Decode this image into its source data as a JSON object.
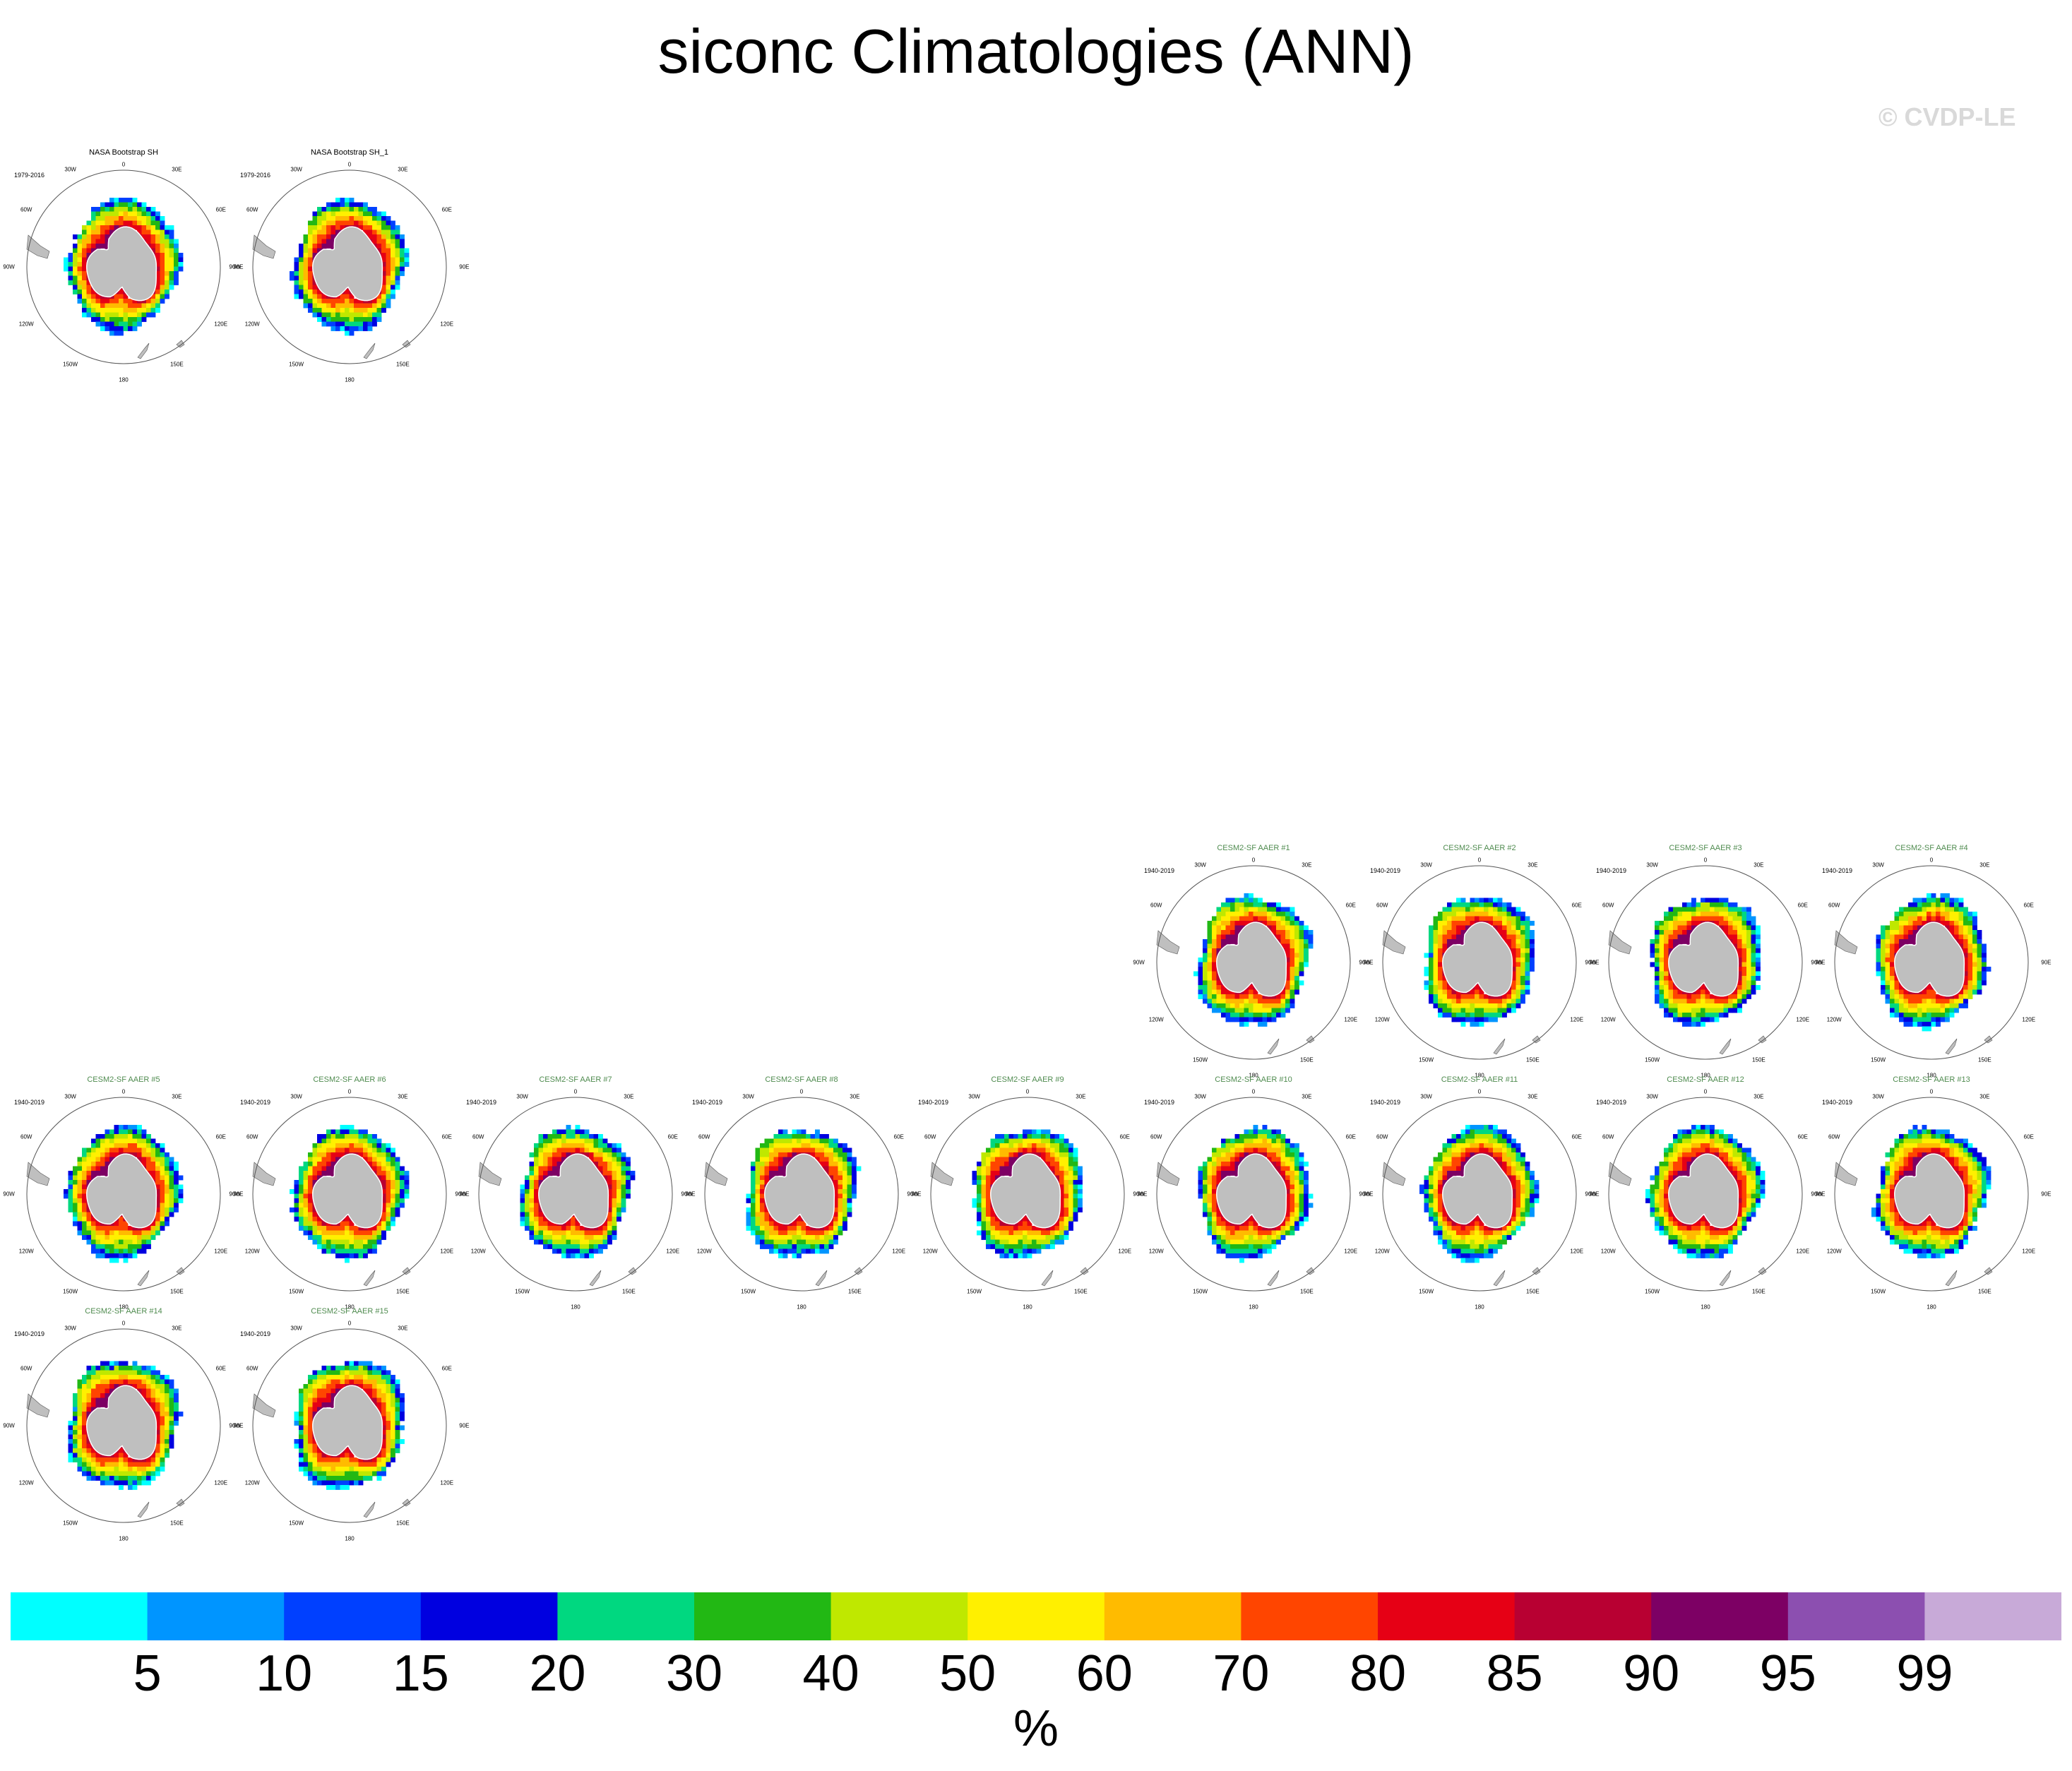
{
  "title": "siconc Climatologies (ANN)",
  "watermark": "© CVDP-LE",
  "chart_data": {
    "type": "heatmap",
    "title": "siconc Climatologies (ANN)",
    "projection": "South polar stereographic",
    "variable": "siconc",
    "units": "%",
    "season": "ANN",
    "colorbar": {
      "levels": [
        "5",
        "10",
        "15",
        "20",
        "30",
        "40",
        "50",
        "60",
        "70",
        "80",
        "85",
        "90",
        "95",
        "99"
      ],
      "colors": [
        "#00ffff",
        "#0095ff",
        "#0040ff",
        "#0000e0",
        "#00d880",
        "#22b814",
        "#bfe800",
        "#fff000",
        "#ffbb00",
        "#ff4500",
        "#e60015",
        "#b80032",
        "#7d0064",
        "#8c4fb0",
        "#c8aad8"
      ],
      "units": "%"
    },
    "lon_labels": [
      "0",
      "30E",
      "60E",
      "90E",
      "120E",
      "150E",
      "180",
      "150W",
      "120W",
      "90W",
      "60W",
      "30W"
    ],
    "panels": [
      {
        "name": "NASA Bootstrap SH",
        "years": "1979-2016",
        "kind": "obs"
      },
      {
        "name": "NASA Bootstrap SH_1",
        "years": "1979-2016",
        "kind": "obs"
      },
      {
        "name": "CESM2-SF AAER #1",
        "years": "1940-2019",
        "kind": "model"
      },
      {
        "name": "CESM2-SF AAER #2",
        "years": "1940-2019",
        "kind": "model"
      },
      {
        "name": "CESM2-SF AAER #3",
        "years": "1940-2019",
        "kind": "model"
      },
      {
        "name": "CESM2-SF AAER #4",
        "years": "1940-2019",
        "kind": "model"
      },
      {
        "name": "CESM2-SF AAER #5",
        "years": "1940-2019",
        "kind": "model"
      },
      {
        "name": "CESM2-SF AAER #6",
        "years": "1940-2019",
        "kind": "model"
      },
      {
        "name": "CESM2-SF AAER #7",
        "years": "1940-2019",
        "kind": "model"
      },
      {
        "name": "CESM2-SF AAER #8",
        "years": "1940-2019",
        "kind": "model"
      },
      {
        "name": "CESM2-SF AAER #9",
        "years": "1940-2019",
        "kind": "model"
      },
      {
        "name": "CESM2-SF AAER #10",
        "years": "1940-2019",
        "kind": "model"
      },
      {
        "name": "CESM2-SF AAER #11",
        "years": "1940-2019",
        "kind": "model"
      },
      {
        "name": "CESM2-SF AAER #12",
        "years": "1940-2019",
        "kind": "model"
      },
      {
        "name": "CESM2-SF AAER #13",
        "years": "1940-2019",
        "kind": "model"
      },
      {
        "name": "CESM2-SF AAER #14",
        "years": "1940-2019",
        "kind": "model"
      },
      {
        "name": "CESM2-SF AAER #15",
        "years": "1940-2019",
        "kind": "model"
      }
    ]
  }
}
